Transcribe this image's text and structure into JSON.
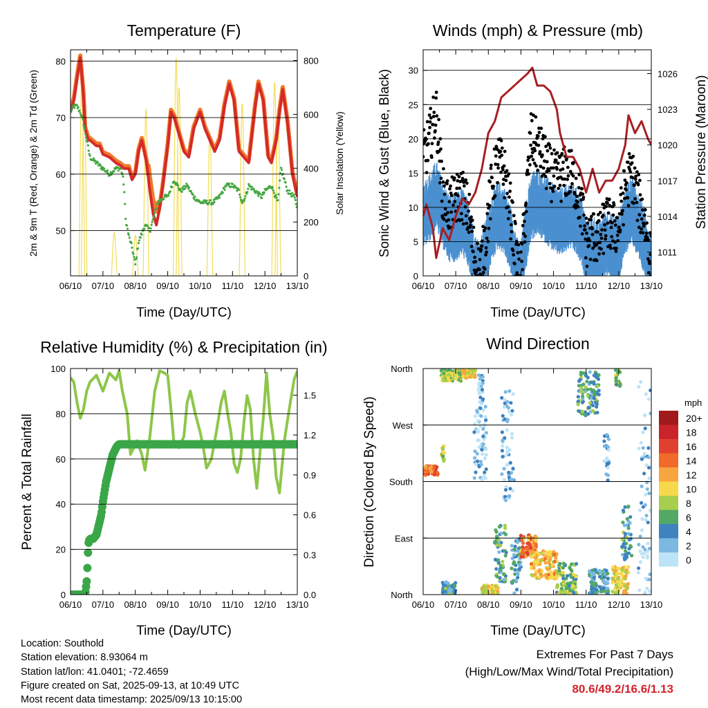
{
  "panels": {
    "temperature": {
      "title": "Temperature (F)",
      "ylabel_left": "2m & 9m T (Red, Orange) & 2m Td (Green)",
      "ylabel_right": "Solar Insolation (Yellow)",
      "xlabel": "Time (Day/UTC)"
    },
    "winds": {
      "title": "Winds (mph) & Pressure (mb)",
      "ylabel_left": "Sonic Wind & Gust (Blue, Black)",
      "ylabel_right": "Station Pressure (Maroon)",
      "xlabel": "Time (Day/UTC)"
    },
    "humidity": {
      "title": "Relative Humidity (%) & Precipitation (in)",
      "ylabel_left": "Percent & Total Rainfall",
      "xlabel": "Time (Day/UTC)"
    },
    "direction": {
      "title": "Wind Direction",
      "ylabel_left": "Direction (Colored By Speed)",
      "xlabel": "Time (Day/UTC)"
    }
  },
  "legend": {
    "title": "mph",
    "bins": [
      {
        "label": "20+",
        "color": "#a01a1c"
      },
      {
        "label": "18",
        "color": "#c8242a"
      },
      {
        "label": "16",
        "color": "#e0412f"
      },
      {
        "label": "14",
        "color": "#f06a2a"
      },
      {
        "label": "12",
        "color": "#f9a53f"
      },
      {
        "label": "10",
        "color": "#f6d94a"
      },
      {
        "label": "8",
        "color": "#a7cf4d"
      },
      {
        "label": "6",
        "color": "#52a865"
      },
      {
        "label": "4",
        "color": "#3e82c0"
      },
      {
        "label": "2",
        "color": "#7bb8e2"
      },
      {
        "label": "0",
        "color": "#bde3f6"
      }
    ]
  },
  "station_info": {
    "location": "Location: Southold",
    "elevation": "Station elevation: 8.93064 m",
    "latlon": "Station lat/lon: 41.0401; -72.4659",
    "created": "Figure created on Sat, 2025-09-13, at 10:49 UTC",
    "recent": "Most recent data timestamp: 2025/09/13 10:15:00"
  },
  "extremes": {
    "line1": "Extremes For Past 7 Days",
    "line2": "(High/Low/Max Wind/Total Precipitation)",
    "values": "80.6/49.2/16.6/1.13"
  },
  "chart_data": [
    {
      "type": "line",
      "title": "Temperature (F)",
      "x_ticks": [
        "06/10",
        "07/10",
        "08/10",
        "09/10",
        "10/10",
        "11/10",
        "12/10",
        "13/10"
      ],
      "ylim": [
        42,
        82
      ],
      "y_ticks": [
        50,
        60,
        70,
        80
      ],
      "y2lim": [
        0,
        840
      ],
      "y2_ticks": [
        0,
        200,
        400,
        600,
        800
      ],
      "colors": {
        "t2m": "#d42a2a",
        "t9m": "#f07a2a",
        "td": "#45a843",
        "solar": "#f3dd55"
      },
      "series": [
        {
          "key": "t2m",
          "x": [
            6.0,
            6.1,
            6.2,
            6.3,
            6.4,
            6.45,
            6.55,
            6.6,
            6.8,
            6.9,
            7.0,
            7.2,
            7.4,
            7.55,
            7.65,
            7.7,
            7.8,
            7.9,
            8.0,
            8.1,
            8.2,
            8.35,
            8.45,
            8.55,
            8.65,
            8.75,
            8.85,
            9.0,
            9.1,
            9.2,
            9.35,
            9.5,
            9.65,
            9.8,
            10.0,
            10.15,
            10.3,
            10.45,
            10.6,
            10.75,
            10.9,
            11.05,
            11.2,
            11.35,
            11.5,
            11.6,
            11.7,
            11.8,
            11.95,
            12.1,
            12.2,
            12.35,
            12.45,
            12.55,
            12.7,
            12.85,
            13.0
          ],
          "y": [
            71,
            73,
            77,
            80.6,
            74,
            68,
            66,
            66,
            65,
            65,
            63.5,
            63,
            62,
            61.5,
            61,
            61,
            61,
            59,
            60,
            64,
            66,
            62,
            57,
            53,
            51,
            54,
            58,
            65,
            71,
            70,
            67,
            64,
            63,
            68,
            71,
            68,
            66,
            64,
            66,
            72,
            76,
            73,
            64,
            63,
            62,
            67,
            72,
            76,
            73,
            63,
            62,
            66,
            71,
            75,
            69,
            60,
            56
          ]
        },
        {
          "key": "td",
          "x": [
            6.0,
            6.1,
            6.2,
            6.3,
            6.4,
            6.5,
            6.6,
            6.8,
            7.0,
            7.2,
            7.4,
            7.55,
            7.6,
            7.65,
            7.7,
            7.8,
            7.9,
            8.0,
            8.1,
            8.3,
            8.45,
            8.6,
            8.7,
            8.9,
            9.0,
            9.2,
            9.4,
            9.6,
            9.8,
            10.0,
            10.2,
            10.4,
            10.6,
            10.8,
            11.0,
            11.2,
            11.3,
            11.4,
            11.5,
            11.7,
            11.9,
            12.0,
            12.2,
            12.4,
            12.5,
            12.7,
            12.9,
            13.0
          ],
          "y": [
            71,
            72,
            72,
            71,
            69,
            66,
            63,
            62,
            61,
            60,
            61,
            61,
            60,
            58,
            52,
            49,
            47,
            44,
            48,
            51,
            50,
            53,
            55,
            56,
            56,
            59,
            57,
            58,
            56,
            55,
            55,
            55,
            56,
            58,
            58,
            57,
            55,
            56,
            58,
            57,
            56,
            57,
            58,
            55,
            61,
            57,
            56,
            54
          ]
        },
        {
          "key": "solar",
          "peaks": [
            [
              6.35,
              760
            ],
            [
              6.42,
              700
            ],
            [
              7.35,
              160
            ],
            [
              8.0,
              150
            ],
            [
              8.33,
              620
            ],
            [
              9.26,
              810
            ],
            [
              9.35,
              700
            ],
            [
              10.3,
              520
            ],
            [
              11.3,
              640
            ],
            [
              12.3,
              720
            ],
            [
              12.4,
              610
            ]
          ]
        }
      ]
    },
    {
      "type": "line",
      "title": "Winds (mph) & Pressure (mb)",
      "x_ticks": [
        "06/10",
        "07/10",
        "08/10",
        "09/10",
        "10/10",
        "11/10",
        "12/10",
        "13/10"
      ],
      "ylim": [
        0,
        33
      ],
      "y_ticks": [
        0,
        5,
        10,
        15,
        20,
        25,
        30
      ],
      "y2_ticks": [
        1011,
        1014,
        1017,
        1020,
        1023,
        1026
      ],
      "colors": {
        "wind": "#4a90d0",
        "gust": "#000000",
        "pressure": "#a81e22"
      },
      "series": [
        {
          "key": "wind_mean",
          "x": [
            6.0,
            6.2,
            6.4,
            6.6,
            6.8,
            7.0,
            7.2,
            7.4,
            7.6,
            7.75,
            7.9,
            8.1,
            8.3,
            8.5,
            8.7,
            8.9,
            9.0,
            9.1,
            9.3,
            9.5,
            9.7,
            9.9,
            10.1,
            10.3,
            10.5,
            10.7,
            10.9,
            11.0,
            11.2,
            11.4,
            11.6,
            11.8,
            12.0,
            12.2,
            12.4,
            12.6,
            12.8,
            13.0
          ],
          "y": [
            9,
            10,
            12,
            9,
            7,
            7,
            8,
            6,
            1,
            0.5,
            3,
            7,
            9,
            8,
            5,
            0.5,
            0,
            4,
            10,
            11,
            10,
            9,
            8,
            8,
            9,
            8,
            6,
            3,
            4,
            3,
            5,
            4,
            4,
            8,
            10,
            7,
            5,
            1
          ]
        },
        {
          "key": "gust_mean",
          "x": [
            6.0,
            6.2,
            6.4,
            6.6,
            6.8,
            7.0,
            7.2,
            7.4,
            7.6,
            7.75,
            7.9,
            8.1,
            8.3,
            8.5,
            8.7,
            8.9,
            9.0,
            9.1,
            9.3,
            9.5,
            9.7,
            9.9,
            10.1,
            10.3,
            10.5,
            10.7,
            10.9,
            11.0,
            11.2,
            11.4,
            11.6,
            11.8,
            12.0,
            12.2,
            12.4,
            12.6,
            12.8,
            13.0
          ],
          "y": [
            17,
            20,
            24,
            12,
            10,
            11,
            12,
            9,
            2,
            1,
            5,
            13,
            17,
            15,
            9,
            1,
            0.5,
            7,
            20,
            19,
            17,
            15,
            14,
            15,
            15,
            13,
            9,
            5,
            6,
            5,
            8,
            7,
            7,
            13,
            15,
            11,
            8,
            2
          ]
        },
        {
          "key": "pressure",
          "x": [
            6.0,
            6.1,
            6.3,
            6.4,
            6.6,
            6.8,
            7.0,
            7.2,
            7.4,
            7.6,
            7.8,
            8.0,
            8.2,
            8.4,
            8.6,
            8.8,
            9.0,
            9.2,
            9.35,
            9.5,
            9.7,
            9.9,
            10.1,
            10.2,
            10.4,
            10.6,
            10.8,
            11.0,
            11.2,
            11.4,
            11.6,
            11.8,
            12.0,
            12.2,
            12.3,
            12.5,
            12.7,
            12.9,
            13.0
          ],
          "y": [
            1014,
            1015,
            1013,
            1010.5,
            1013,
            1012,
            1014,
            1015.5,
            1015,
            1016,
            1018,
            1021,
            1022,
            1024,
            1024.5,
            1025,
            1025.5,
            1026,
            1026.5,
            1025,
            1025,
            1024.5,
            1023,
            1021,
            1019,
            1019,
            1018,
            1016,
            1018,
            1016,
            1017,
            1017,
            1018,
            1020,
            1022.5,
            1021,
            1022,
            1020.5,
            1020
          ]
        }
      ]
    },
    {
      "type": "line",
      "title": "Relative Humidity (%) & Precipitation (in)",
      "x_ticks": [
        "06/10",
        "07/10",
        "08/10",
        "09/10",
        "10/10",
        "11/10",
        "12/10",
        "13/10"
      ],
      "ylim": [
        0,
        100
      ],
      "y_ticks": [
        0,
        20,
        40,
        60,
        80,
        100
      ],
      "y2_ticks": [
        0.0,
        0.3,
        0.6,
        0.9,
        1.2,
        1.5
      ],
      "colors": {
        "rh": "#8ec64a",
        "precip": "#3aa648"
      },
      "series": [
        {
          "key": "rh",
          "x": [
            6.0,
            6.1,
            6.2,
            6.3,
            6.4,
            6.5,
            6.6,
            6.8,
            7.0,
            7.2,
            7.4,
            7.5,
            7.6,
            7.75,
            7.85,
            7.95,
            8.05,
            8.2,
            8.3,
            8.45,
            8.6,
            8.75,
            8.9,
            9.0,
            9.1,
            9.2,
            9.35,
            9.5,
            9.6,
            9.7,
            9.85,
            10.0,
            10.1,
            10.2,
            10.35,
            10.5,
            10.65,
            10.75,
            10.85,
            10.95,
            11.05,
            11.15,
            11.25,
            11.35,
            11.45,
            11.55,
            11.65,
            11.75,
            11.85,
            11.95,
            12.05,
            12.15,
            12.25,
            12.35,
            12.45,
            12.6,
            12.75,
            12.9,
            13.0
          ],
          "y": [
            96,
            94,
            85,
            78,
            82,
            90,
            94,
            97,
            90,
            98,
            95,
            99,
            90,
            80,
            62,
            65,
            68,
            62,
            55,
            70,
            90,
            99,
            98,
            97,
            82,
            66,
            65,
            70,
            85,
            90,
            80,
            72,
            65,
            56,
            60,
            72,
            85,
            90,
            80,
            72,
            58,
            54,
            60,
            76,
            88,
            82,
            60,
            47,
            63,
            78,
            98,
            80,
            70,
            52,
            45,
            68,
            82,
            95,
            99
          ]
        },
        {
          "key": "precip",
          "x": [
            6.0,
            6.45,
            6.5,
            6.53,
            6.55,
            6.58,
            6.62,
            6.7,
            6.8,
            6.85,
            6.9,
            6.95,
            7.0,
            7.1,
            7.2,
            7.3,
            7.4,
            7.45,
            7.5,
            13.0
          ],
          "y": [
            0.0,
            0.0,
            0.1,
            0.25,
            0.38,
            0.41,
            0.42,
            0.42,
            0.45,
            0.5,
            0.55,
            0.6,
            0.7,
            0.85,
            0.95,
            1.05,
            1.1,
            1.12,
            1.13,
            1.13
          ]
        }
      ]
    },
    {
      "type": "scatter",
      "title": "Wind Direction",
      "x_ticks": [
        "06/10",
        "07/10",
        "08/10",
        "09/10",
        "10/10",
        "11/10",
        "12/10",
        "13/10"
      ],
      "y_ticks": [
        "North",
        "East",
        "South",
        "West",
        "North"
      ],
      "ylim": [
        0,
        360
      ],
      "clusters": [
        {
          "x": [
            6.05,
            6.45
          ],
          "dir": [
            190,
            205
          ],
          "speed": 14
        },
        {
          "x": [
            6.55,
            6.65
          ],
          "dir": [
            210,
            240
          ],
          "speed": 8
        },
        {
          "x": [
            6.55,
            7.2
          ],
          "dir": [
            340,
            360
          ],
          "speed": 8
        },
        {
          "x": [
            7.2,
            7.6
          ],
          "dir": [
            345,
            360
          ],
          "speed": 10
        },
        {
          "x": [
            7.7,
            7.85
          ],
          "dir": [
            300,
            350
          ],
          "speed": 2
        },
        {
          "x": [
            7.55,
            7.95
          ],
          "dir": [
            180,
            300
          ],
          "speed": 1
        },
        {
          "x": [
            6.6,
            7.0
          ],
          "dir": [
            0,
            20
          ],
          "speed": 5
        },
        {
          "x": [
            7.8,
            8.3
          ],
          "dir": [
            0,
            15
          ],
          "speed": 10
        },
        {
          "x": [
            8.2,
            8.55
          ],
          "dir": [
            20,
            110
          ],
          "speed": 5
        },
        {
          "x": [
            8.4,
            8.8
          ],
          "dir": [
            150,
            330
          ],
          "speed": 2
        },
        {
          "x": [
            8.7,
            9.0
          ],
          "dir": [
            0,
            90
          ],
          "speed": 4
        },
        {
          "x": [
            9.0,
            9.5
          ],
          "dir": [
            60,
            95
          ],
          "speed": 13
        },
        {
          "x": [
            9.3,
            10.1
          ],
          "dir": [
            25,
            70
          ],
          "speed": 11
        },
        {
          "x": [
            10.1,
            10.7
          ],
          "dir": [
            0,
            50
          ],
          "speed": 7
        },
        {
          "x": [
            10.75,
            11.4
          ],
          "dir": [
            285,
            355
          ],
          "speed": 5
        },
        {
          "x": [
            11.1,
            11.7
          ],
          "dir": [
            0,
            40
          ],
          "speed": 4
        },
        {
          "x": [
            11.55,
            11.7
          ],
          "dir": [
            180,
            260
          ],
          "speed": 2
        },
        {
          "x": [
            11.9,
            12.05
          ],
          "dir": [
            330,
            360
          ],
          "speed": 7
        },
        {
          "x": [
            11.8,
            12.3
          ],
          "dir": [
            0,
            45
          ],
          "speed": 10
        },
        {
          "x": [
            12.1,
            12.4
          ],
          "dir": [
            55,
            145
          ],
          "speed": 5
        },
        {
          "x": [
            12.6,
            13.0
          ],
          "dir": [
            0,
            340
          ],
          "speed": 1
        }
      ]
    }
  ]
}
